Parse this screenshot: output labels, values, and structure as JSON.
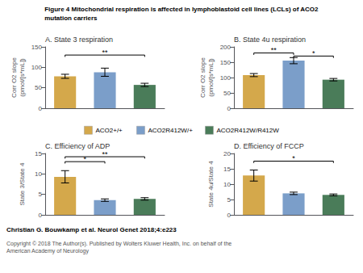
{
  "title": "Figure 4 Mitochondrial respiration is affected in lymphoblastoid cell lines (LCLs) of ACO2\nmutation carriers",
  "legend": "center",
  "annotations": [
    "Christian G. Bouwkamp et al. Neurol Genet 2018;4:e223",
    "Copyright © 2018 The Author(s). Published by Wolters Kluwer Health, Inc. on behalf of the\nAmerican Academy of Neurology"
  ],
  "chart_data": [
    {
      "type": "bar",
      "title": "A. State 3 respiration",
      "ylabel": "Corr O2 slope\n(pmol/[s*mL])",
      "categories": [
        "ACO2+/+",
        "ACO2R412W/+",
        "ACO2R412W/R412W"
      ],
      "values": [
        78,
        88,
        57
      ],
      "errors": [
        5,
        10,
        4
      ],
      "colors": [
        "#D4A84B",
        "#7B9EC9",
        "#4A7C59"
      ],
      "ylim": [
        0,
        150
      ],
      "yticks": [
        0,
        50,
        100,
        150
      ],
      "grid": false,
      "tick_labels": "y",
      "annotations": [
        {
          "x1": "ACO2+/+",
          "x2": "ACO2R412W/R412W",
          "y": 130,
          "label": "**"
        }
      ]
    },
    {
      "type": "bar",
      "title": "B. State 4u respiration",
      "ylabel": "Corr O2 slope\n(pmol/[s*mL])",
      "categories": [
        "ACO2+/+",
        "ACO2R412W/+",
        "ACO2R412W/R412W"
      ],
      "values": [
        108,
        155,
        93
      ],
      "errors": [
        5,
        10,
        4
      ],
      "colors": [
        "#D4A84B",
        "#7B9EC9",
        "#4A7C59"
      ],
      "ylim": [
        0,
        200
      ],
      "yticks": [
        0,
        50,
        100,
        150,
        200
      ],
      "grid": false,
      "tick_labels": "y",
      "annotations": [
        {
          "x1": "ACO2+/+",
          "x2": "ACO2R412W/+",
          "y": 180,
          "label": "**"
        },
        {
          "x1": "ACO2R412W/+",
          "x2": "ACO2R412W/R412W",
          "y": 170,
          "label": "*"
        }
      ]
    },
    {
      "type": "bar",
      "title": "C. Efficiency of ADP",
      "ylabel": "State 3/State 4",
      "categories": [
        "ACO2+/+",
        "ACO2R412W/+",
        "ACO2R412W/R412W"
      ],
      "values": [
        9.3,
        3.6,
        3.9
      ],
      "errors": [
        1.5,
        0.3,
        0.3
      ],
      "colors": [
        "#D4A84B",
        "#7B9EC9",
        "#4A7C59"
      ],
      "ylim": [
        0,
        15
      ],
      "yticks": [
        0,
        5,
        10,
        15
      ],
      "grid": false,
      "tick_labels": "y",
      "annotations": [
        {
          "x1": "ACO2+/+",
          "x2": "ACO2R412W/+",
          "y": 13.0,
          "label": "*"
        },
        {
          "x1": "ACO2+/+",
          "x2": "ACO2R412W/R412W",
          "y": 14.2,
          "label": "**"
        }
      ]
    },
    {
      "type": "bar",
      "title": "D. Efficiency of FCCP",
      "ylabel": "State 4u/State 4",
      "categories": [
        "ACO2+/+",
        "ACO2R412W/+",
        "ACO2R412W/R412W"
      ],
      "values": [
        12.8,
        7.0,
        6.5
      ],
      "errors": [
        1.8,
        0.4,
        0.3
      ],
      "colors": [
        "#D4A84B",
        "#7B9EC9",
        "#4A7C59"
      ],
      "ylim": [
        0,
        20
      ],
      "yticks": [
        0,
        5,
        10,
        15,
        20
      ],
      "grid": false,
      "tick_labels": "y",
      "annotations": [
        {
          "x1": "ACO2+/+",
          "x2": "ACO2R412W/R412W",
          "y": 17.5,
          "label": "*"
        }
      ]
    }
  ]
}
